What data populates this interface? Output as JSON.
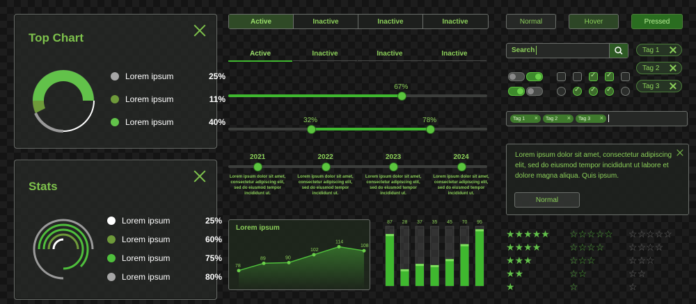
{
  "top_chart": {
    "title": "Top Chart",
    "legend": [
      {
        "label": "Lorem ipsum",
        "value": "25%",
        "color": "#a6a6a6"
      },
      {
        "label": "Lorem ipsum",
        "value": "11%",
        "color": "#6e9a3a"
      },
      {
        "label": "Lorem ipsum",
        "value": "40%",
        "color": "#62c24a"
      }
    ]
  },
  "stats": {
    "title": "Stats",
    "legend": [
      {
        "label": "Lorem ipsum",
        "value": "25%",
        "color": "#ffffff"
      },
      {
        "label": "Lorem ipsum",
        "value": "60%",
        "color": "#6e9a3a"
      },
      {
        "label": "Lorem ipsum",
        "value": "75%",
        "color": "#4fbf3c"
      },
      {
        "label": "Lorem ipsum",
        "value": "80%",
        "color": "#a6a6a6"
      }
    ]
  },
  "tabs_boxed": [
    "Active",
    "Inactive",
    "Inactive",
    "Inactive"
  ],
  "tabs_underlined": [
    "Active",
    "Inactive",
    "Inactive",
    "Inactive"
  ],
  "buttons": {
    "normal": "Normal",
    "hover": "Hover",
    "pressed": "Pressed"
  },
  "slider_single": {
    "value": 67,
    "label": "67%"
  },
  "slider_range": {
    "low": 32,
    "high": 78,
    "low_label": "32%",
    "high_label": "78%"
  },
  "timeline": [
    {
      "year": "2021",
      "text": "Lorem ipsum dolor sit amet, consectetur adipiscing elit, sed do eiusmod tempor incididunt ut."
    },
    {
      "year": "2022",
      "text": "Lorem ipsum dolor sit amet, consectetur adipiscing elit, sed do eiusmod tempor incididunt ut."
    },
    {
      "year": "2023",
      "text": "Lorem ipsum dolor sit amet, consectetur adipiscing elit, sed do eiusmod tempor incididunt ut."
    },
    {
      "year": "2024",
      "text": "Lorem ipsum dolor sit amet, consectetur adipiscing elit, sed do eiusmod tempor incididunt ut."
    }
  ],
  "search": {
    "value": "Search",
    "icon": "search-icon"
  },
  "tags": [
    "Tag 1",
    "Tag 2",
    "Tag 3"
  ],
  "tag_input": {
    "tags": [
      "Tag 1",
      "Tag 2",
      "Tag 3"
    ]
  },
  "toggles": [
    {
      "state": "off"
    },
    {
      "state": "on"
    },
    {
      "state": "on"
    },
    {
      "state": "off"
    }
  ],
  "checkboxes": [
    false,
    false,
    true,
    true,
    false
  ],
  "radios": [
    false,
    true,
    true,
    true,
    false
  ],
  "alert": {
    "text": "Lorem ipsum dolor sit amet, consectetur adipiscing elit, sed do eiusmod tempor incididunt ut labore et dolore magna aliqua. Quis ipsum.",
    "button": "Normal"
  },
  "chart_data": [
    {
      "type": "line",
      "title": "Lorem ipsum",
      "x": [
        1,
        2,
        3,
        4,
        5,
        6
      ],
      "values": [
        78,
        89,
        90,
        102,
        114,
        108
      ],
      "ylim": [
        60,
        125
      ]
    },
    {
      "type": "bar",
      "values": [
        87,
        28,
        37,
        35,
        45,
        70,
        95
      ],
      "ylim": [
        0,
        100
      ]
    }
  ],
  "ratings": {
    "columns": [
      "filled",
      "outline",
      "dark"
    ],
    "rows": [
      5,
      4,
      3,
      2,
      1
    ]
  },
  "colors": {
    "accent": "#62c24a",
    "accent_text": "#8cd05a",
    "panel": "#262826"
  }
}
